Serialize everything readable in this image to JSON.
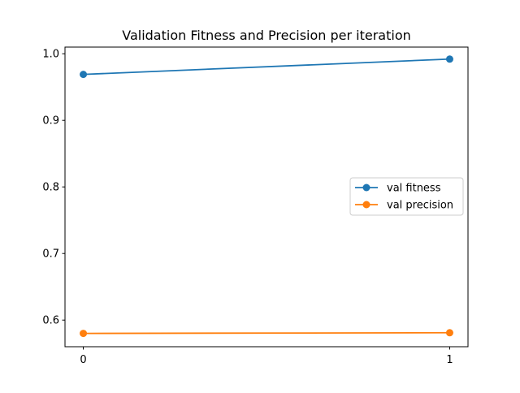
{
  "chart_data": {
    "type": "line",
    "title": "Validation Fitness and Precision per iteration",
    "xlabel": "",
    "ylabel": "",
    "x": [
      0,
      1
    ],
    "xticks": [
      "0",
      "1"
    ],
    "yticks": [
      "0.6",
      "0.7",
      "0.8",
      "0.9",
      "1.0"
    ],
    "xlim": [
      -0.05,
      1.05
    ],
    "ylim": [
      0.56,
      1.01
    ],
    "grid": false,
    "legend_position": "center-right",
    "series": [
      {
        "name": "val fitness",
        "values": [
          0.969,
          0.992
        ],
        "color": "#1f77b4",
        "marker": "circle"
      },
      {
        "name": "val precision",
        "values": [
          0.58,
          0.581
        ],
        "color": "#ff7f0e",
        "marker": "circle"
      }
    ]
  }
}
